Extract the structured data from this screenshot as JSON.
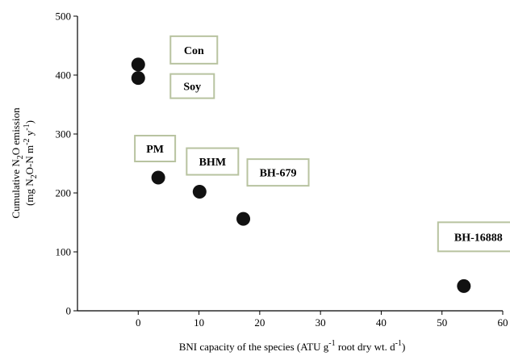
{
  "chart_data": {
    "type": "scatter",
    "title": "",
    "xlabel": {
      "main": "BNI capacity of the species (ATU g",
      "sup1": "-1",
      "mid": " root dry wt. d",
      "sup2": "-1",
      "end": ")"
    },
    "ylabel": {
      "line1_a": "Cumulative N",
      "line1_sub": "2",
      "line1_b": "O emission",
      "line2_a": "(mg N",
      "line2_sub": "2",
      "line2_b": "O-N m",
      "line2_sup1": "-2",
      "line2_c": " y",
      "line2_sup2": "-1",
      "line2_d": ")"
    },
    "xlim": [
      -10,
      60
    ],
    "ylim": [
      0,
      500
    ],
    "xticks": [
      0,
      10,
      20,
      30,
      40,
      50,
      60
    ],
    "yticks": [
      0,
      100,
      200,
      300,
      400,
      500
    ],
    "grid": false,
    "points": [
      {
        "label": "Con",
        "x": 0,
        "y": 418
      },
      {
        "label": "Soy",
        "x": 0,
        "y": 395
      },
      {
        "label": "PM",
        "x": 3.3,
        "y": 226
      },
      {
        "label": "BHM",
        "x": 10.1,
        "y": 202
      },
      {
        "label": "BH-679",
        "x": 17.3,
        "y": 156
      },
      {
        "label": "BH-16888",
        "x": 53.6,
        "y": 42
      }
    ],
    "colors": {
      "marker": "#111111",
      "label_border": "#b8c3a0"
    }
  }
}
